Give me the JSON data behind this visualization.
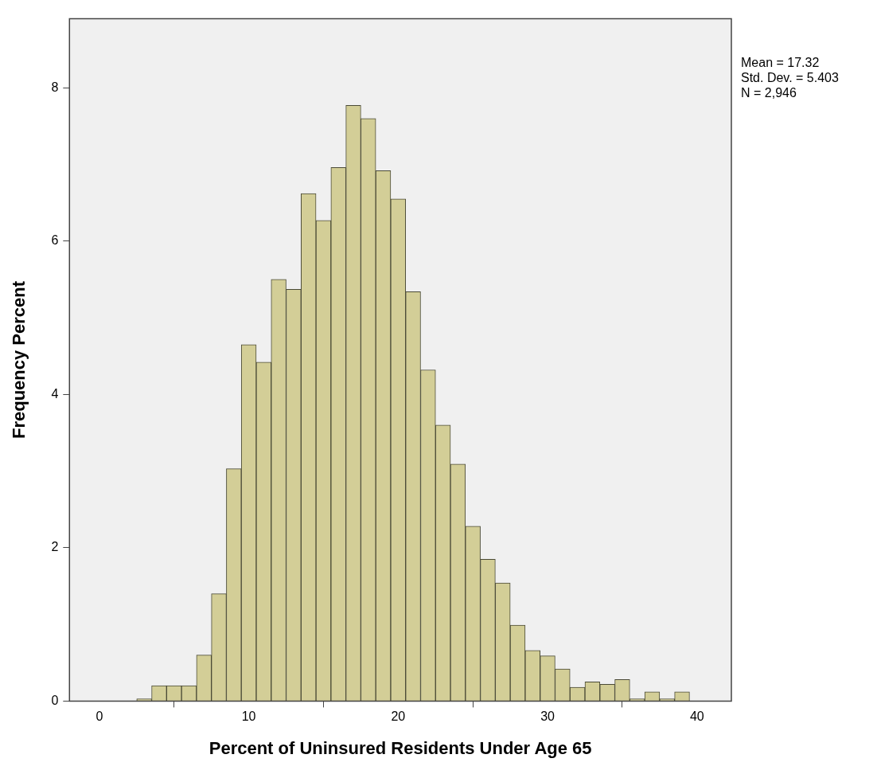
{
  "chart_data": {
    "type": "histogram",
    "xlabel": "Percent of Uninsured Residents Under Age 65",
    "ylabel": "Frequency Percent",
    "annotations": [
      "Mean = 17.32",
      "Std. Dev. = 5.403",
      "N = 2,946"
    ],
    "bins": [
      2.5,
      3.5,
      4.5,
      5.5,
      6.5,
      7.5,
      8.5,
      9.5,
      10.5,
      11.5,
      12.5,
      13.5,
      14.5,
      15.5,
      16.5,
      17.5,
      18.5,
      19.5,
      20.5,
      21.5,
      22.5,
      23.5,
      24.5,
      25.5,
      26.5,
      27.5,
      28.5,
      29.5,
      30.5,
      31.5,
      32.5,
      33.5,
      34.5,
      35.5,
      36.5,
      37.5,
      38.5,
      39.5
    ],
    "values": [
      0.03,
      0.2,
      0.2,
      0.2,
      0.6,
      1.4,
      3.03,
      4.65,
      4.42,
      5.5,
      5.37,
      6.62,
      6.27,
      6.96,
      7.77,
      7.6,
      6.92,
      6.55,
      5.34,
      4.32,
      3.6,
      3.09,
      2.28,
      1.85,
      1.54,
      0.99,
      0.66,
      0.59,
      0.42,
      0.18,
      0.25,
      0.22,
      0.28,
      0.03,
      0.12,
      0.03,
      0.12
    ],
    "color": "#d3ce97",
    "xlim": [
      -2,
      42.3
    ],
    "xticks": [
      0,
      10,
      20,
      30,
      40
    ],
    "ylim": [
      0,
      8.9
    ],
    "yticks": [
      0,
      2,
      4,
      6,
      8
    ],
    "grid": false,
    "legend": false
  }
}
